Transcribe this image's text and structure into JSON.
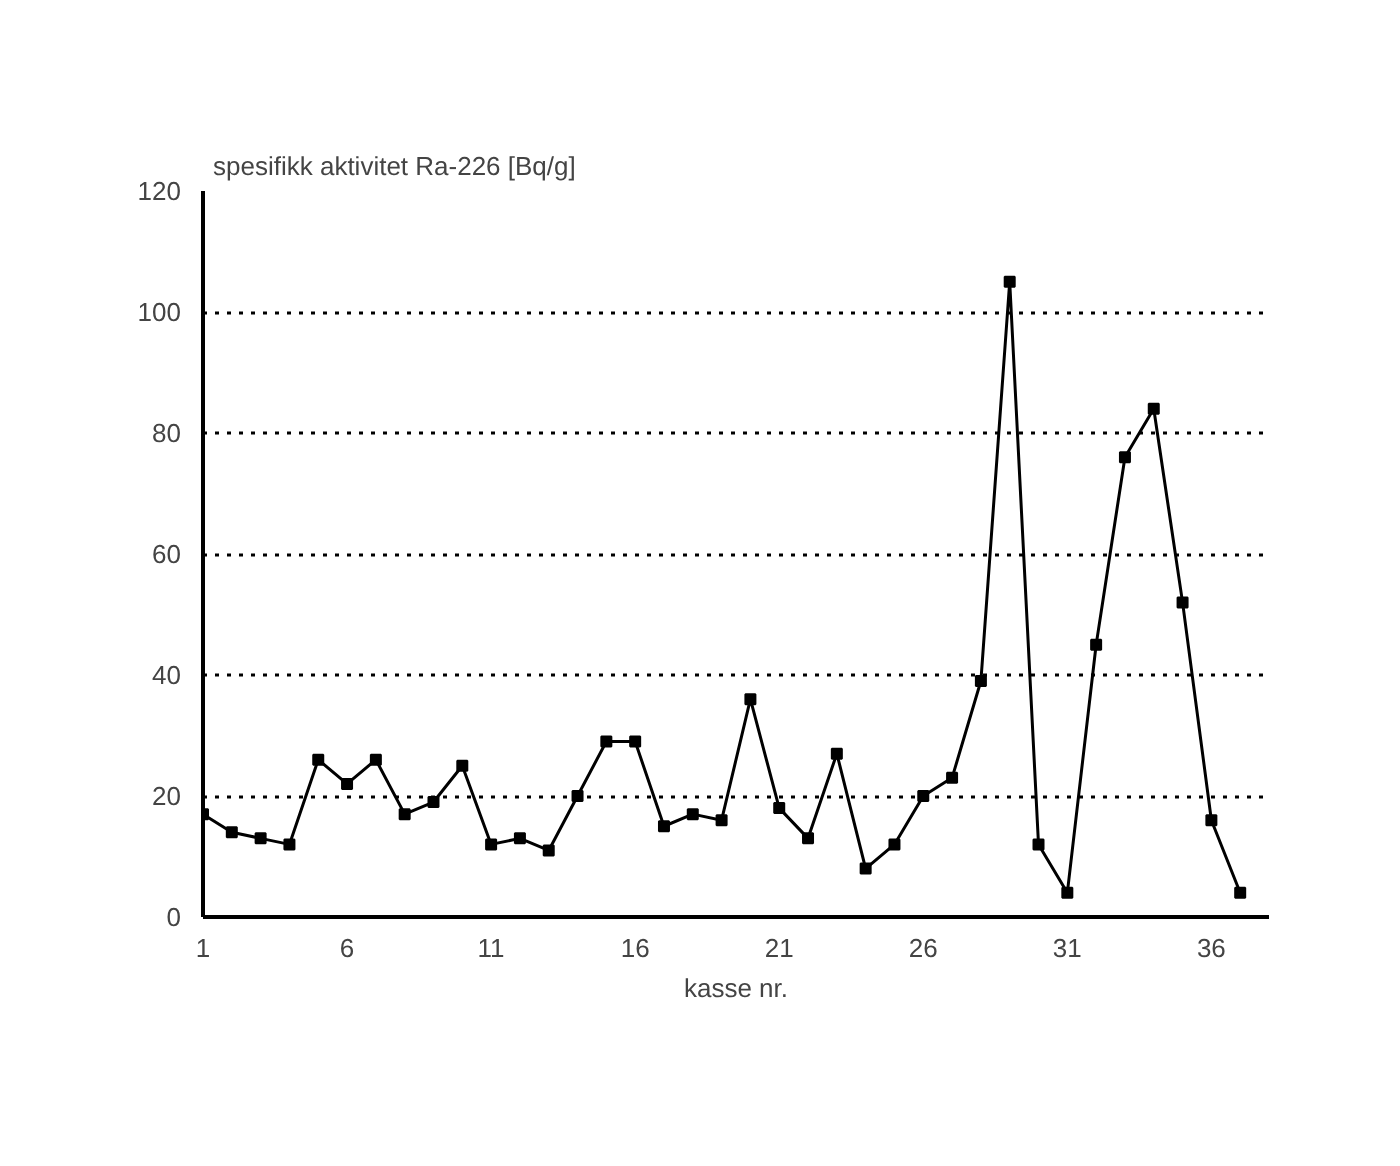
{
  "chart_data": {
    "type": "line",
    "ylabel": "spesifikk aktivitet Ra-226 [Bq/g]",
    "xlabel": "kasse nr.",
    "x": [
      1,
      2,
      3,
      4,
      5,
      6,
      7,
      8,
      9,
      10,
      11,
      12,
      13,
      14,
      15,
      16,
      17,
      18,
      19,
      20,
      21,
      22,
      23,
      24,
      25,
      26,
      27,
      28,
      29,
      30,
      31,
      32,
      33,
      34,
      35,
      36,
      37
    ],
    "series": [
      {
        "color": "#000000",
        "values": [
          17,
          14,
          13,
          12,
          26,
          22,
          26,
          17,
          19,
          25,
          12,
          13,
          11,
          20,
          29,
          29,
          15,
          17,
          16,
          36,
          18,
          13,
          27,
          8,
          12,
          20,
          23,
          39,
          105,
          12,
          4,
          45,
          76,
          84,
          52,
          16,
          4
        ]
      }
    ],
    "xlim": [
      1,
      38
    ],
    "xticks": [
      1,
      6,
      11,
      16,
      21,
      26,
      31,
      36
    ],
    "ylim": [
      0,
      120
    ],
    "yticks": [
      0,
      20,
      40,
      60,
      80,
      100,
      120
    ],
    "grid": "y",
    "marker": "square",
    "line_style": "solid"
  }
}
